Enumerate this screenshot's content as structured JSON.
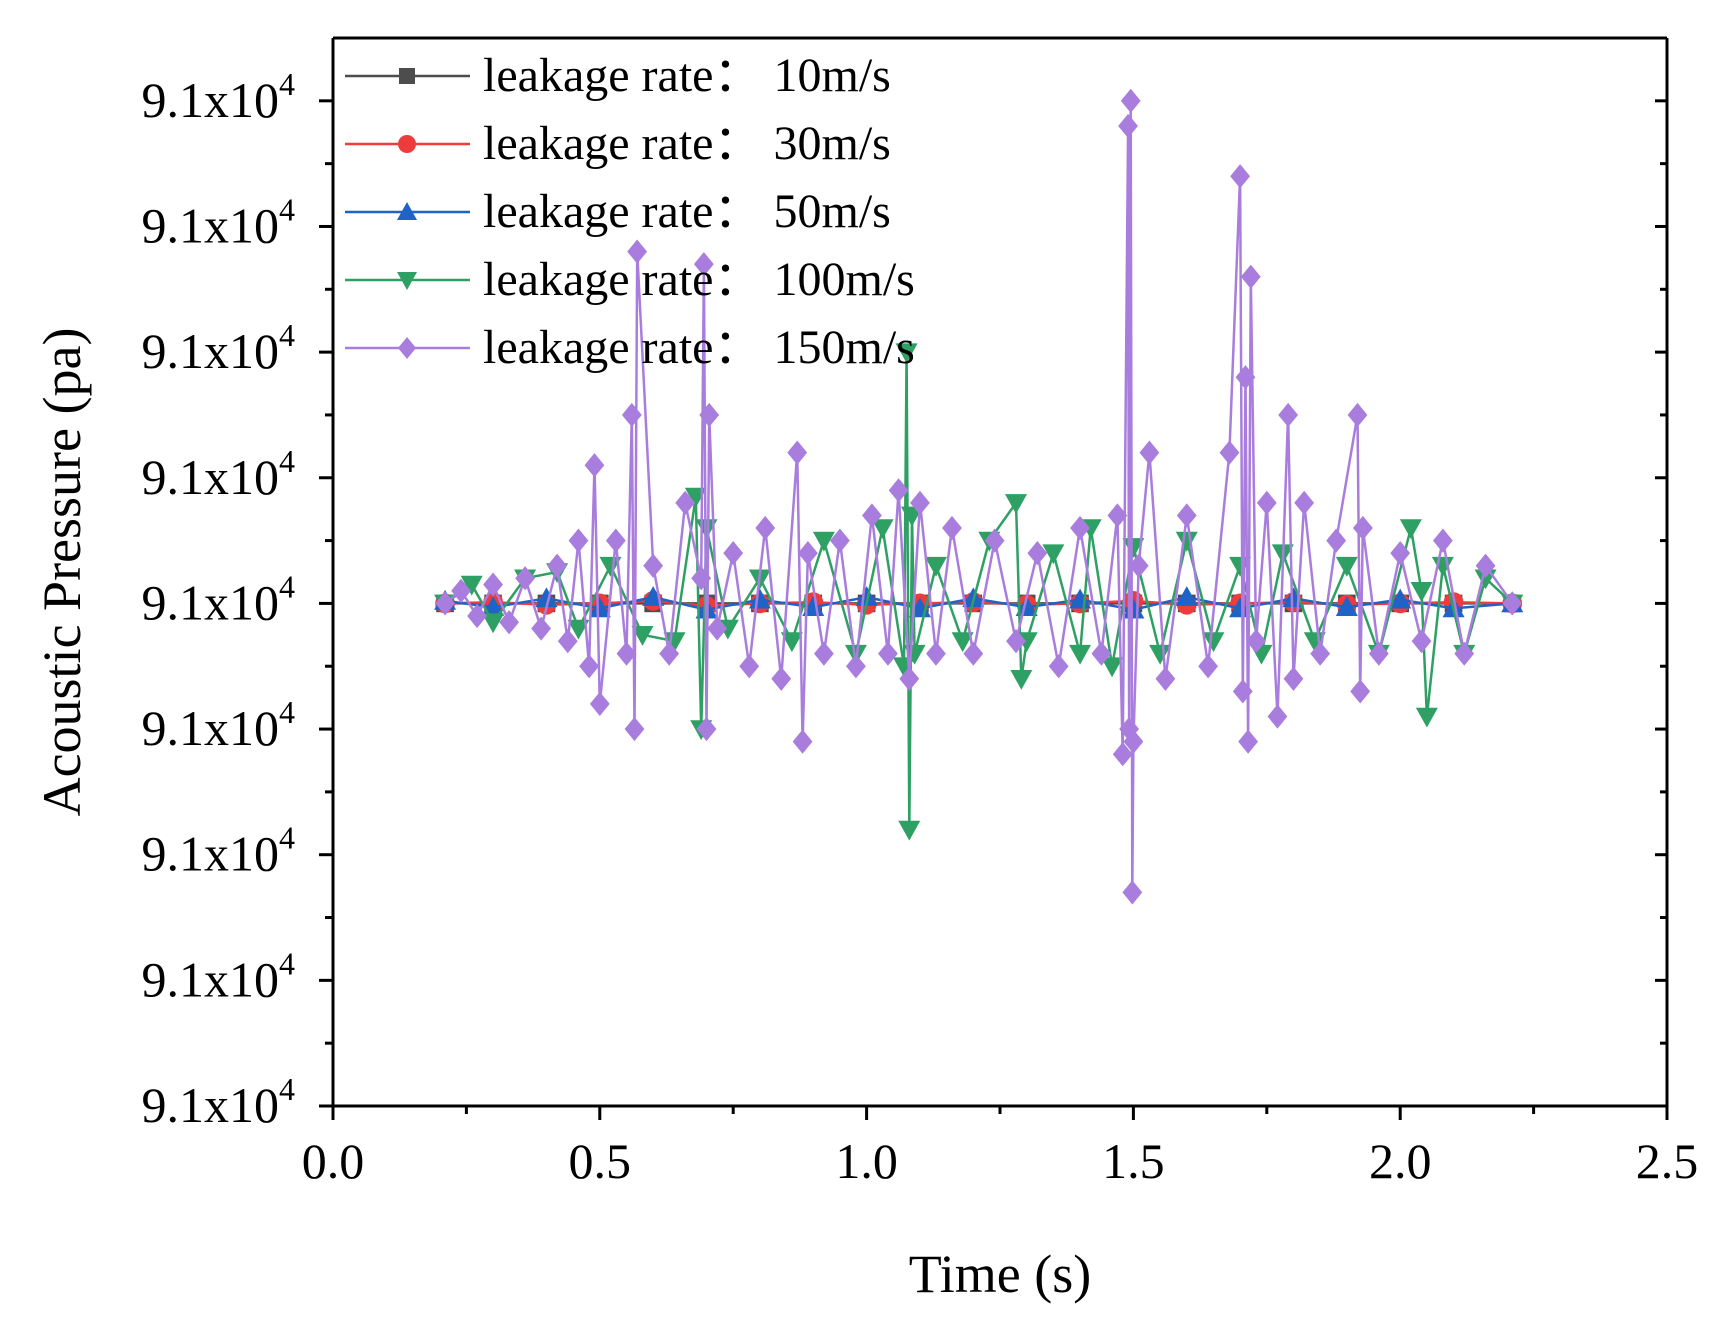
{
  "chart_data": {
    "type": "line",
    "title": "",
    "xlabel": "Time (s)",
    "ylabel": "Acoustic Pressure (pa)",
    "xlim": [
      0.0,
      2.5
    ],
    "ylim": [
      0.0,
      8.5
    ],
    "x_ticks": [
      {
        "value": 0.0,
        "label": "0.0"
      },
      {
        "value": 0.5,
        "label": "0.5"
      },
      {
        "value": 1.0,
        "label": "1.0"
      },
      {
        "value": 1.5,
        "label": "1.5"
      },
      {
        "value": 2.0,
        "label": "2.0"
      },
      {
        "value": 2.5,
        "label": "2.5"
      }
    ],
    "y_ticks": [
      {
        "value": 0,
        "mantissa": "9.1x10",
        "exponent": "4"
      },
      {
        "value": 1,
        "mantissa": "9.1x10",
        "exponent": "4"
      },
      {
        "value": 2,
        "mantissa": "9.1x10",
        "exponent": "4"
      },
      {
        "value": 3,
        "mantissa": "9.1x10",
        "exponent": "4"
      },
      {
        "value": 4,
        "mantissa": "9.1x10",
        "exponent": "4"
      },
      {
        "value": 5,
        "mantissa": "9.1x10",
        "exponent": "4"
      },
      {
        "value": 6,
        "mantissa": "9.1x10",
        "exponent": "4"
      },
      {
        "value": 7,
        "mantissa": "9.1x10",
        "exponent": "4"
      },
      {
        "value": 8,
        "mantissa": "9.1x10",
        "exponent": "4"
      }
    ],
    "legend_position": "top-left",
    "series": [
      {
        "name": "leakage rate：  10m/s",
        "color": "#4d4d4d",
        "marker": "square",
        "x": [
          0.21,
          0.3,
          0.4,
          0.5,
          0.6,
          0.7,
          0.8,
          0.9,
          1.0,
          1.1,
          1.2,
          1.3,
          1.4,
          1.5,
          1.6,
          1.7,
          1.8,
          1.9,
          2.0,
          2.1,
          2.21
        ],
        "y": [
          4.0,
          4.0,
          4.0,
          4.0,
          4.0,
          4.0,
          4.0,
          4.0,
          4.0,
          4.0,
          4.0,
          4.0,
          4.0,
          4.0,
          4.0,
          4.0,
          4.0,
          4.0,
          4.0,
          4.0,
          4.0
        ]
      },
      {
        "name": "leakage rate：  30m/s",
        "color": "#ee3b3b",
        "marker": "circle",
        "x": [
          0.21,
          0.3,
          0.4,
          0.5,
          0.6,
          0.7,
          0.8,
          0.9,
          1.0,
          1.1,
          1.2,
          1.3,
          1.4,
          1.5,
          1.6,
          1.7,
          1.8,
          1.9,
          2.0,
          2.1,
          2.21
        ],
        "y": [
          4.0,
          4.01,
          3.99,
          4.0,
          4.02,
          3.98,
          4.0,
          4.01,
          3.99,
          4.0,
          4.01,
          3.99,
          4.0,
          4.02,
          3.99,
          4.0,
          4.01,
          3.99,
          4.0,
          4.01,
          4.0
        ]
      },
      {
        "name": "leakage rate：  50m/s",
        "color": "#1f63c6",
        "marker": "triangle-up",
        "x": [
          0.21,
          0.3,
          0.4,
          0.5,
          0.6,
          0.7,
          0.8,
          0.9,
          1.0,
          1.1,
          1.2,
          1.3,
          1.4,
          1.5,
          1.6,
          1.7,
          1.8,
          1.9,
          2.0,
          2.1,
          2.21
        ],
        "y": [
          4.02,
          3.97,
          4.04,
          3.96,
          4.05,
          3.95,
          4.03,
          3.97,
          4.05,
          3.96,
          4.04,
          3.97,
          4.03,
          3.95,
          4.05,
          3.96,
          4.04,
          3.97,
          4.03,
          3.96,
          4.0
        ]
      },
      {
        "name": "leakage rate：  100m/s",
        "color": "#2fa064",
        "marker": "triangle-down",
        "x": [
          0.21,
          0.26,
          0.3,
          0.36,
          0.42,
          0.46,
          0.52,
          0.58,
          0.64,
          0.68,
          0.69,
          0.7,
          0.74,
          0.8,
          0.86,
          0.92,
          0.98,
          1.03,
          1.07,
          1.075,
          1.08,
          1.085,
          1.09,
          1.13,
          1.18,
          1.23,
          1.28,
          1.29,
          1.3,
          1.35,
          1.4,
          1.42,
          1.46,
          1.5,
          1.55,
          1.6,
          1.65,
          1.7,
          1.74,
          1.78,
          1.84,
          1.9,
          1.96,
          2.02,
          2.04,
          2.05,
          2.08,
          2.12,
          2.16,
          2.21
        ],
        "y": [
          4.0,
          4.15,
          3.85,
          4.2,
          4.25,
          3.8,
          4.3,
          3.75,
          3.7,
          4.85,
          3.0,
          4.6,
          3.8,
          4.2,
          3.7,
          4.5,
          3.6,
          4.6,
          3.5,
          6.0,
          2.2,
          4.7,
          3.6,
          4.3,
          3.7,
          4.5,
          4.8,
          3.4,
          3.7,
          4.4,
          3.6,
          4.6,
          3.5,
          4.45,
          3.6,
          4.5,
          3.7,
          4.3,
          3.6,
          4.4,
          3.7,
          4.3,
          3.6,
          4.6,
          4.1,
          3.1,
          4.3,
          3.6,
          4.2,
          4.0
        ]
      },
      {
        "name": "leakage rate：  150m/s",
        "color": "#a97ddd",
        "marker": "diamond",
        "x": [
          0.21,
          0.24,
          0.27,
          0.3,
          0.33,
          0.36,
          0.39,
          0.42,
          0.44,
          0.46,
          0.48,
          0.49,
          0.5,
          0.53,
          0.55,
          0.56,
          0.565,
          0.57,
          0.6,
          0.63,
          0.66,
          0.69,
          0.695,
          0.7,
          0.705,
          0.72,
          0.75,
          0.78,
          0.81,
          0.84,
          0.87,
          0.88,
          0.89,
          0.92,
          0.95,
          0.98,
          1.01,
          1.04,
          1.06,
          1.08,
          1.1,
          1.13,
          1.16,
          1.2,
          1.24,
          1.28,
          1.32,
          1.36,
          1.4,
          1.44,
          1.47,
          1.48,
          1.49,
          1.492,
          1.495,
          1.498,
          1.5,
          1.51,
          1.53,
          1.56,
          1.6,
          1.64,
          1.68,
          1.7,
          1.705,
          1.71,
          1.715,
          1.72,
          1.73,
          1.75,
          1.77,
          1.79,
          1.8,
          1.82,
          1.85,
          1.88,
          1.92,
          1.925,
          1.93,
          1.96,
          2.0,
          2.04,
          2.08,
          2.12,
          2.16,
          2.21
        ],
        "y": [
          4.0,
          4.1,
          3.9,
          4.15,
          3.85,
          4.2,
          3.8,
          4.3,
          3.7,
          4.5,
          3.5,
          5.1,
          3.2,
          4.5,
          3.6,
          5.5,
          3.0,
          6.8,
          4.3,
          3.6,
          4.8,
          4.2,
          6.7,
          3.0,
          5.5,
          3.8,
          4.4,
          3.5,
          4.6,
          3.4,
          5.2,
          2.9,
          4.4,
          3.6,
          4.5,
          3.5,
          4.7,
          3.6,
          4.9,
          3.4,
          4.8,
          3.6,
          4.6,
          3.6,
          4.5,
          3.7,
          4.4,
          3.5,
          4.6,
          3.6,
          4.7,
          2.8,
          7.8,
          3.0,
          8.0,
          1.7,
          2.9,
          4.3,
          5.2,
          3.4,
          4.7,
          3.5,
          5.2,
          7.4,
          3.3,
          5.8,
          2.9,
          6.6,
          3.7,
          4.8,
          3.1,
          5.5,
          3.4,
          4.8,
          3.6,
          4.5,
          5.5,
          3.3,
          4.6,
          3.6,
          4.4,
          3.7,
          4.5,
          3.6,
          4.3,
          4.0
        ]
      }
    ]
  }
}
